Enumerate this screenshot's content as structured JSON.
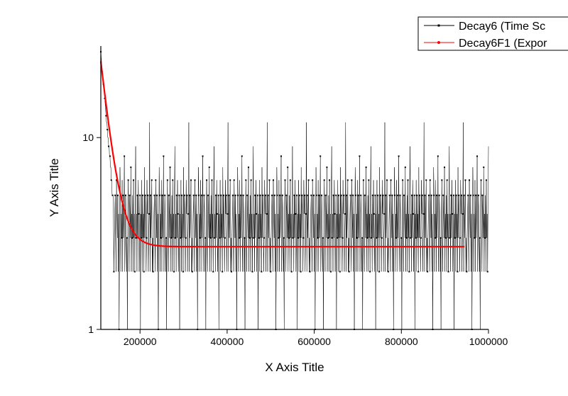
{
  "chart_data": {
    "type": "line",
    "title": "",
    "xlabel": "X Axis Title",
    "ylabel": "Y Axis Title",
    "x_scale": "linear",
    "y_scale": "log10",
    "xlim": [
      110000,
      1000000
    ],
    "ylim": [
      1,
      30
    ],
    "x_ticks": [
      200000,
      400000,
      600000,
      800000,
      1000000
    ],
    "x_tick_labels": [
      "200000",
      "400000",
      "600000",
      "800000",
      "1000000"
    ],
    "y_ticks": [
      1,
      10
    ],
    "y_tick_labels": [
      "1",
      "10"
    ],
    "grid": false,
    "legend_position": "top-right",
    "series": [
      {
        "name": "Decay6 (Time Sc",
        "color": "#000000",
        "marker": "square",
        "x_start": 110000,
        "x_end": 1000000,
        "early_values": [
          28,
          26,
          24,
          22,
          22,
          20,
          19,
          18,
          17,
          16,
          15,
          14,
          13,
          12,
          12,
          11,
          10,
          10,
          9,
          9,
          8,
          8,
          7,
          7,
          6,
          6,
          5,
          5,
          5,
          4
        ],
        "tail_values": [
          2,
          3,
          4,
          5,
          3,
          2,
          6,
          4,
          3,
          5,
          2,
          4,
          1,
          3,
          7,
          5,
          2,
          4,
          3,
          6,
          2,
          5,
          3,
          4,
          8,
          2,
          3,
          5,
          4,
          2,
          3,
          1,
          4,
          6,
          3,
          2,
          5,
          4,
          3,
          7,
          2,
          4,
          3,
          5,
          2,
          6,
          3,
          4,
          2,
          5,
          9,
          3,
          4,
          2,
          5,
          3,
          6,
          4,
          2,
          3,
          5,
          1,
          4,
          3,
          6,
          2,
          5,
          3,
          4,
          2,
          7,
          3,
          5,
          4,
          2,
          3,
          6,
          4,
          5,
          2,
          3,
          4,
          12,
          2,
          5,
          3,
          4,
          6,
          2,
          3
        ]
      },
      {
        "name": "Decay6F1 (Expor",
        "color": "#ff0000",
        "marker": "circle",
        "model": "y = y0 + A*exp(-(x - x0)/t)",
        "y0": 2.7,
        "A": 22.3,
        "x0": 110000,
        "t": 20000,
        "x_start": 110000,
        "x_end": 945000
      }
    ]
  }
}
